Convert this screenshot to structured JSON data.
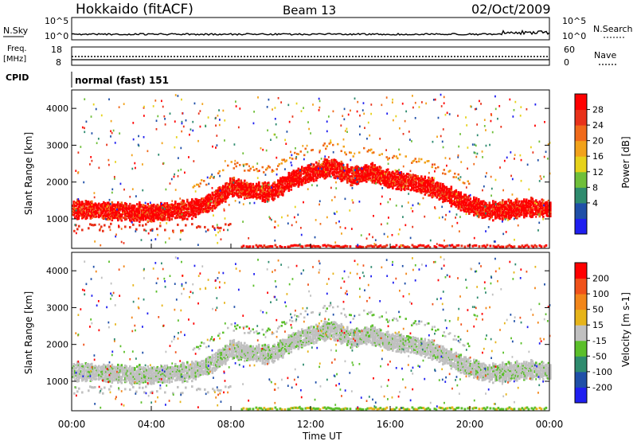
{
  "header": {
    "station": "Hokkaido (fitACF)",
    "beam": "Beam 13",
    "date": "02/Oct/2009"
  },
  "strip": {
    "nsky_label": "N.Sky",
    "nsearch_label": "N.Search",
    "nsky_ticks": [
      "10^5",
      "10^0"
    ],
    "freq_label": "Freq.",
    "freq_unit": "[MHz]",
    "freq_ticks": [
      "18",
      "8"
    ],
    "nave_label": "Nave",
    "nave_ticks": [
      "60",
      "0"
    ],
    "cpid_label": "CPID",
    "cpid_value": "normal (fast) 151"
  },
  "colors": {
    "power_scale": [
      "#1f1ff0",
      "#1f4fa8",
      "#2e8b6e",
      "#6fbf3a",
      "#e6d21a",
      "#f2a21a",
      "#f06a1a",
      "#e8321a",
      "#ff0000"
    ],
    "velocity_scale": [
      "#1f1ff0",
      "#1f4fa8",
      "#2e8b6e",
      "#5bbf2a",
      "#c0c0c0",
      "#e6b41a",
      "#f2861a",
      "#f0521a",
      "#ff0000"
    ]
  },
  "chart_data": [
    {
      "type": "heatmap",
      "panel": "power",
      "ylabel": "Slant Range [km]",
      "xlabel": "Time UT",
      "x_ticks": [
        "00:00",
        "04:00",
        "08:00",
        "12:00",
        "16:00",
        "20:00",
        "00:00"
      ],
      "y_ticks": [
        1000,
        2000,
        3000,
        4000
      ],
      "ylim": [
        200,
        4500
      ],
      "colorbar_label": "Power [dB]",
      "colorbar_ticks": [
        28,
        24,
        20,
        16,
        12,
        8,
        4
      ],
      "main_echo_band_km": [
        [
          0,
          1300
        ],
        [
          2,
          1250
        ],
        [
          4,
          1200
        ],
        [
          6,
          1300
        ],
        [
          7,
          1500
        ],
        [
          8,
          1900
        ],
        [
          9,
          1800
        ],
        [
          10,
          1750
        ],
        [
          11,
          2100
        ],
        [
          12,
          2300
        ],
        [
          13,
          2450
        ],
        [
          14,
          2200
        ],
        [
          15,
          2300
        ],
        [
          16,
          2100
        ],
        [
          17,
          2050
        ],
        [
          18,
          1900
        ],
        [
          19,
          1650
        ],
        [
          20,
          1400
        ],
        [
          21,
          1250
        ],
        [
          22,
          1300
        ],
        [
          23,
          1350
        ],
        [
          24,
          1300
        ]
      ]
    },
    {
      "type": "heatmap",
      "panel": "velocity",
      "ylabel": "Slant Range [km]",
      "xlabel": "Time UT",
      "x_ticks": [
        "00:00",
        "04:00",
        "08:00",
        "12:00",
        "16:00",
        "20:00",
        "00:00"
      ],
      "y_ticks": [
        1000,
        2000,
        3000,
        4000
      ],
      "ylim": [
        200,
        4500
      ],
      "colorbar_label": "Velocity [m s-1]",
      "colorbar_ticks": [
        200,
        100,
        50,
        15,
        -15,
        -50,
        -100,
        -200
      ]
    }
  ]
}
